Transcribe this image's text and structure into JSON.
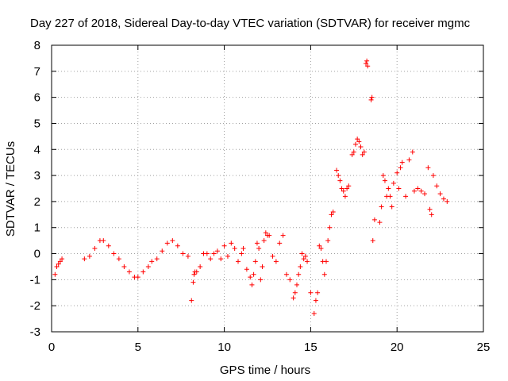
{
  "chart_data": {
    "type": "scatter",
    "title": "Day 227 of 2018, Sidereal Day-to-day VTEC variation (SDTVAR) for receiver mgmc",
    "xlabel": "GPS time / hours",
    "ylabel": "SDTVAR / TECUs",
    "xlim": [
      0,
      25
    ],
    "ylim": [
      -3,
      8
    ],
    "xticks": [
      0,
      5,
      10,
      15,
      20,
      25
    ],
    "yticks": [
      -3,
      -2,
      -1,
      0,
      1,
      2,
      3,
      4,
      5,
      6,
      7,
      8
    ],
    "xtick_labels": [
      "0",
      "5",
      "10",
      "15",
      "20",
      "25"
    ],
    "ytick_labels": [
      "-3",
      "-2",
      "-1",
      "0",
      "1",
      "2",
      "3",
      "4",
      "5",
      "6",
      "7",
      "8"
    ],
    "grid": true,
    "marker": "+",
    "color": "#ff0000",
    "series": [
      {
        "name": "SDTVAR",
        "x": [
          0.2,
          0.3,
          0.4,
          0.5,
          0.6,
          1.9,
          2.2,
          2.5,
          2.8,
          3.0,
          3.3,
          3.6,
          3.9,
          4.2,
          4.5,
          4.8,
          5.0,
          5.3,
          5.6,
          5.8,
          6.1,
          6.4,
          6.7,
          7.0,
          7.3,
          7.6,
          7.9,
          8.1,
          8.2,
          8.25,
          8.3,
          8.4,
          8.6,
          8.8,
          9.0,
          9.2,
          9.4,
          9.6,
          9.8,
          10.0,
          10.2,
          10.4,
          10.6,
          10.8,
          11.0,
          11.1,
          11.3,
          11.5,
          11.6,
          11.7,
          11.8,
          11.9,
          12.0,
          12.1,
          12.2,
          12.3,
          12.4,
          12.5,
          12.6,
          12.8,
          13.0,
          13.2,
          13.4,
          13.6,
          13.8,
          14.0,
          14.1,
          14.2,
          14.3,
          14.4,
          14.5,
          14.6,
          14.7,
          14.8,
          15.0,
          15.2,
          15.3,
          15.4,
          15.5,
          15.6,
          15.7,
          15.8,
          15.9,
          16.0,
          16.1,
          16.2,
          16.3,
          16.5,
          16.6,
          16.7,
          16.8,
          16.9,
          17.0,
          17.1,
          17.2,
          17.4,
          17.5,
          17.6,
          17.7,
          17.8,
          17.9,
          18.0,
          18.1,
          18.2,
          18.25,
          18.3,
          18.5,
          18.55,
          18.6,
          18.7,
          19.0,
          19.1,
          19.2,
          19.3,
          19.4,
          19.5,
          19.6,
          19.7,
          19.8,
          20.0,
          20.1,
          20.2,
          20.3,
          20.5,
          20.7,
          20.9,
          21.0,
          21.2,
          21.4,
          21.6,
          21.8,
          21.9,
          22.0,
          22.1,
          22.3,
          22.5,
          22.7,
          22.9
        ],
        "values": [
          -0.8,
          -0.5,
          -0.4,
          -0.3,
          -0.2,
          -0.2,
          -0.1,
          0.2,
          0.5,
          0.5,
          0.3,
          0.0,
          -0.2,
          -0.5,
          -0.7,
          -0.9,
          -0.9,
          -0.7,
          -0.5,
          -0.3,
          -0.2,
          0.1,
          0.4,
          0.5,
          0.3,
          0.0,
          -0.1,
          -1.8,
          -1.1,
          -0.8,
          -0.7,
          -0.7,
          -0.5,
          0.0,
          0.0,
          -0.2,
          0.0,
          0.1,
          -0.2,
          0.3,
          -0.1,
          0.4,
          0.2,
          -0.3,
          0.0,
          0.2,
          -0.6,
          -0.9,
          -1.2,
          -0.8,
          -0.3,
          0.4,
          0.2,
          -1.0,
          -0.5,
          0.5,
          0.8,
          0.7,
          0.7,
          -0.1,
          -0.3,
          0.4,
          0.7,
          -0.8,
          -1.0,
          -1.7,
          -1.5,
          -1.2,
          -0.8,
          -0.5,
          0.0,
          -0.2,
          -0.1,
          -0.3,
          -1.5,
          -2.3,
          -1.8,
          -1.5,
          0.3,
          0.2,
          -0.3,
          -0.8,
          -0.3,
          0.5,
          1.0,
          1.5,
          1.6,
          3.2,
          3.0,
          2.8,
          2.5,
          2.4,
          2.2,
          2.5,
          2.6,
          3.8,
          3.9,
          4.2,
          4.4,
          4.3,
          4.1,
          3.8,
          3.9,
          7.3,
          7.4,
          7.2,
          5.9,
          6.0,
          0.5,
          1.3,
          1.2,
          1.8,
          3.0,
          2.8,
          2.2,
          2.5,
          2.2,
          1.8,
          2.7,
          3.1,
          2.5,
          3.3,
          3.5,
          2.2,
          3.6,
          3.9,
          2.4,
          2.5,
          2.4,
          2.3,
          3.3,
          1.7,
          1.5,
          3.0,
          2.6,
          2.3,
          2.1,
          2.0
        ]
      }
    ]
  }
}
